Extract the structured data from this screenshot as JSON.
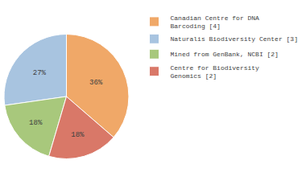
{
  "chart_data": {
    "type": "pie",
    "categories": [
      "Canadian Centre for DNA\nBarcoding [4]",
      "Naturalis Biodiversity Center [3]",
      "Mined from GenBank, NCBI [2]",
      "Centre for Biodiversity\nGenomics [2]"
    ],
    "values": [
      36,
      27,
      18,
      18
    ],
    "value_labels": [
      "36%",
      "27%",
      "18%",
      "18%"
    ],
    "colors": [
      "#f0a868",
      "#a8c4e0",
      "#a8c87c",
      "#d97868"
    ],
    "data_labels": true,
    "legend": "upper right"
  }
}
